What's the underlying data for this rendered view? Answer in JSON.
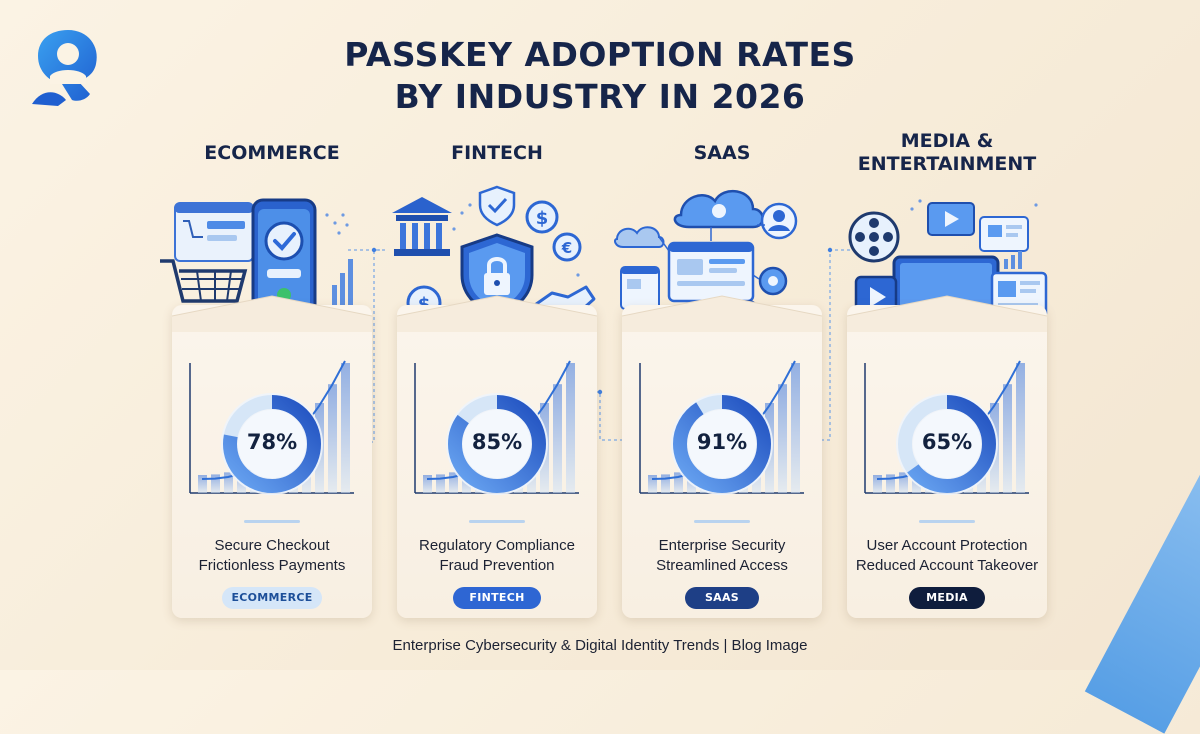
{
  "title_lines": [
    "PASSKEY ADOPTION RATES",
    "BY INDUSTRY IN 2026"
  ],
  "cards": [
    {
      "title_lines": [
        "ECOMMERCE"
      ],
      "desc_lines": [
        "Secure Checkout",
        "Frictionless Payments"
      ],
      "badge": "ECOMMERCE"
    },
    {
      "title_lines": [
        "FINTECH"
      ],
      "desc_lines": [
        "Regulatory Compliance",
        "Fraud Prevention"
      ],
      "badge": "FINTECH"
    },
    {
      "title_lines": [
        "SAAS"
      ],
      "desc_lines": [
        "Enterprise Security",
        "Streamlined Access"
      ],
      "badge": "SAAS"
    },
    {
      "title_lines": [
        "MEDIA &",
        "ENTERTAINMENT"
      ],
      "desc_lines": [
        "User Account Protection",
        "Reduced Account Takeover"
      ],
      "badge": "MEDIA"
    }
  ],
  "footer": "Enterprise Cybersecurity & Digital Identity Trends | Blog Image",
  "chart_data": {
    "type": "donut",
    "title": "PASSKEY ADOPTION RATES BY INDUSTRY IN 2026",
    "categories": [
      "ECOMMERCE",
      "FINTECH",
      "SAAS",
      "MEDIA & ENTERTAINMENT"
    ],
    "values": [
      78,
      85,
      91,
      65
    ],
    "value_labels": [
      "78%",
      "85%",
      "91%",
      "65%"
    ],
    "unit": "%",
    "max": 100
  },
  "colors": {
    "accent": "#2f6fd6",
    "accent_dark": "#16254a",
    "donut_track": "#d6e6f7",
    "badge_styles": [
      {
        "bg": "#d5e6f8",
        "fg": "#1d4f99"
      },
      {
        "bg": "#2e66d3",
        "fg": "#ffffff"
      },
      {
        "bg": "#1e3f86",
        "fg": "#ffffff"
      },
      {
        "bg": "#0f1d3d",
        "fg": "#ffffff"
      }
    ]
  },
  "icons": {
    "logo": "passkey-person-logo-icon",
    "card_illustrations": [
      "shopping-cart-phone-checkmark-icon",
      "bank-shield-lock-handshake-icon",
      "cloud-dashboard-gear-user-icon",
      "film-reel-video-player-icon"
    ]
  }
}
